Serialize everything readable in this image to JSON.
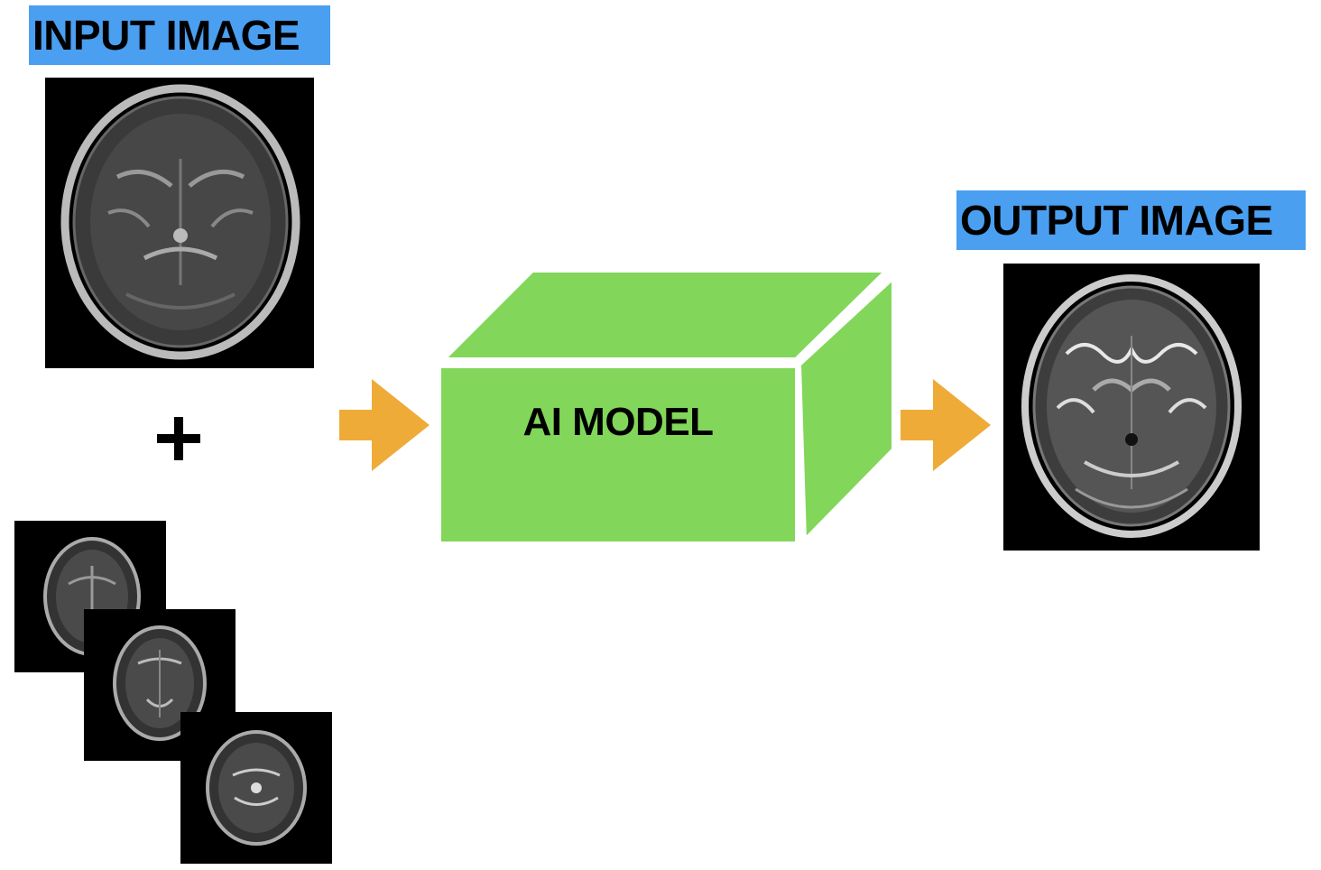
{
  "input": {
    "label": "INPUT IMAGE"
  },
  "output": {
    "label": "OUTPUT IMAGE"
  },
  "model": {
    "label": "AI MODEL"
  },
  "operator": {
    "symbol": "plus-icon"
  },
  "arrows": [
    "arrow-right-icon",
    "arrow-right-icon"
  ],
  "colors": {
    "label_bg": "#4a9ff0",
    "model_green": "#82d65a",
    "arrow_orange": "#efab38",
    "mri_bg": "#000000"
  }
}
